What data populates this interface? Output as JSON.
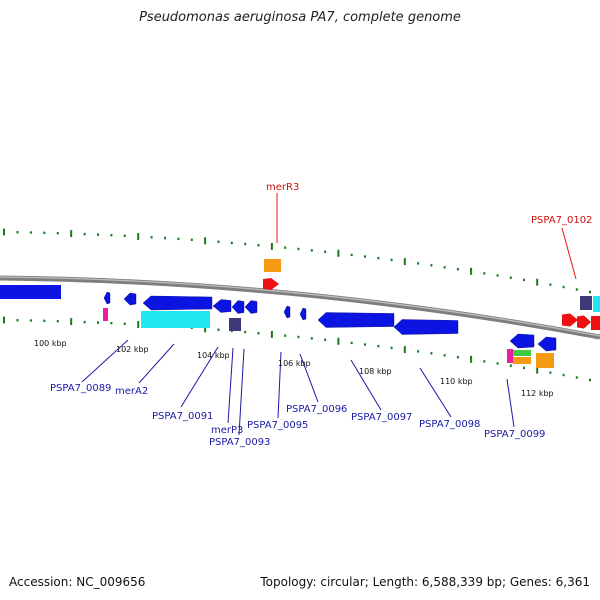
{
  "title": "Pseudomonas aeruginosa PA7, complete genome",
  "footer": {
    "accession": "Accession: NC_009656",
    "summary": "Topology: circular; Length: 6,588,339 bp; Genes: 6,361"
  },
  "colors": {
    "backbone": "#8a8a8a",
    "gene_blue": "#0b14e0",
    "cyan": "#22e6f0",
    "orange": "#f59a12",
    "red": "#ee1111",
    "navy": "#3e3a7a",
    "magenta": "#ec1ea0",
    "green": "#3fca3f",
    "tick": "#1a7a1a",
    "label_blue": "#1a1aa6",
    "label_red": "#cc1111"
  },
  "scale_labels": [
    "100 kbp",
    "102 kbp",
    "104 kbp",
    "106 kbp",
    "108 kbp",
    "110 kbp",
    "112 kbp"
  ],
  "gene_labels": [
    {
      "text": "merR3",
      "color": "red"
    },
    {
      "text": "PSPA7_0102",
      "color": "red"
    },
    {
      "text": "PSPA7_0089",
      "color": "blue"
    },
    {
      "text": "merA2",
      "color": "blue"
    },
    {
      "text": "PSPA7_0091",
      "color": "blue"
    },
    {
      "text": "merP3",
      "color": "blue"
    },
    {
      "text": "PSPA7_0093",
      "color": "blue"
    },
    {
      "text": "PSPA7_0095",
      "color": "blue"
    },
    {
      "text": "PSPA7_0096",
      "color": "blue"
    },
    {
      "text": "PSPA7_0097",
      "color": "blue"
    },
    {
      "text": "PSPA7_0098",
      "color": "blue"
    },
    {
      "text": "PSPA7_0099",
      "color": "blue"
    }
  ]
}
